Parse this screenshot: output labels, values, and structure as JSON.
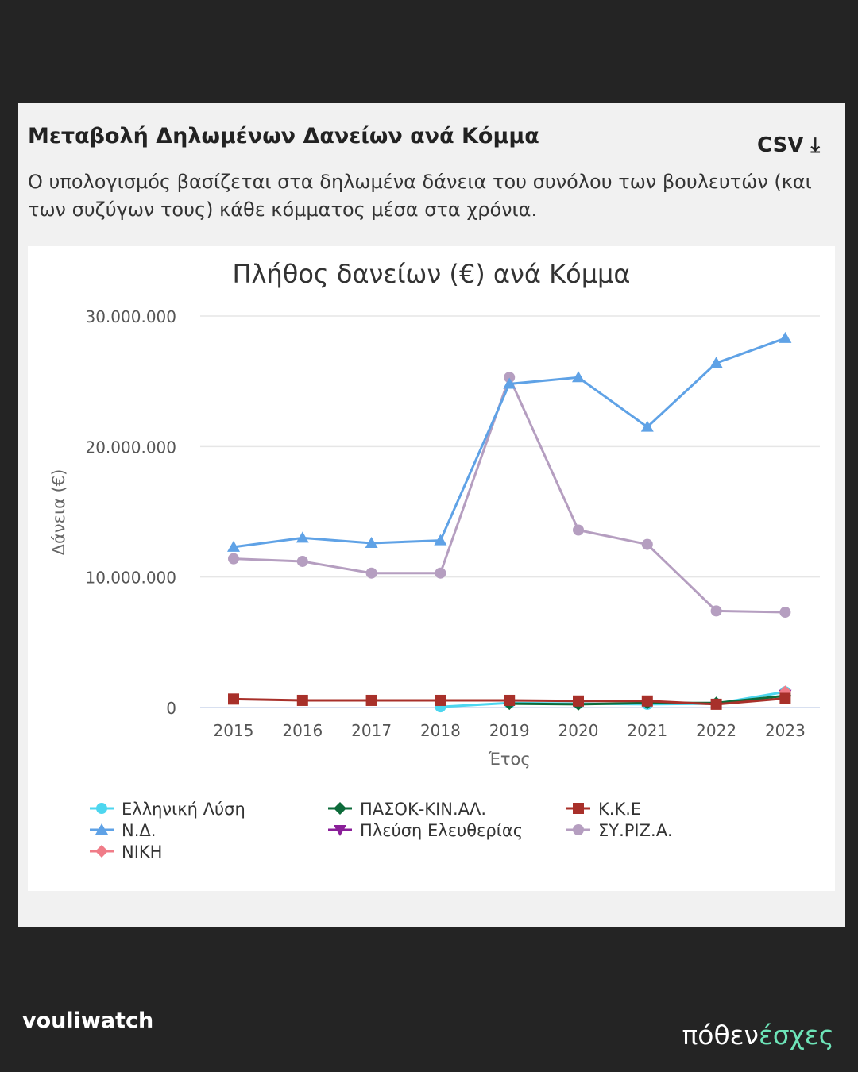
{
  "header": {
    "title": "Μεταβολή Δηλωμένων Δανείων ανά Κόμμα",
    "csv_label": "CSV ⤓",
    "description": "Ο υπολογισμός βασίζεται στα δηλωμένα δάνεια του συνόλου των βουλευτών (και των συζύγων τους) κάθε κόμματος μέσα στα χρόνια."
  },
  "logos": {
    "left": "vouliwatch",
    "right_a": "πόθεν",
    "right_b": "έσχες"
  },
  "chart_data": {
    "type": "line",
    "title": "Πλήθος δανείων (€) ανά Κόμμα",
    "xlabel": "Έτος",
    "ylabel": "Δάνεια (€)",
    "ylim": [
      0,
      30000000
    ],
    "yticks": [
      0,
      10000000,
      20000000,
      30000000
    ],
    "ytick_labels": [
      "0",
      "10.000.000",
      "20.000.000",
      "30.000.000"
    ],
    "grid": true,
    "legend": "bottom",
    "categories": [
      "2015",
      "2016",
      "2017",
      "2018",
      "2019",
      "2020",
      "2021",
      "2022",
      "2023"
    ],
    "series": [
      {
        "name": "Ελληνική Λύση",
        "color": "#4dd6ef",
        "marker": "circle",
        "values": [
          null,
          null,
          null,
          50000,
          350000,
          300000,
          250000,
          300000,
          1200000
        ]
      },
      {
        "name": "ΠΑΣΟΚ-ΚΙΝ.ΑΛ.",
        "color": "#0d6b3a",
        "marker": "diamond",
        "values": [
          null,
          null,
          null,
          null,
          300000,
          250000,
          350000,
          350000,
          900000
        ]
      },
      {
        "name": "Κ.Κ.Ε",
        "color": "#a8302a",
        "marker": "square",
        "values": [
          650000,
          550000,
          550000,
          550000,
          550000,
          500000,
          500000,
          250000,
          700000
        ]
      },
      {
        "name": "Ν.Δ.",
        "color": "#5fa2e6",
        "marker": "triangle",
        "values": [
          12300000,
          13000000,
          12600000,
          12800000,
          24800000,
          25300000,
          21500000,
          26400000,
          28300000
        ]
      },
      {
        "name": "Πλεύση Ελευθερίας",
        "color": "#8a1f99",
        "marker": "triangle-down",
        "values": [
          null,
          null,
          null,
          null,
          null,
          null,
          null,
          null,
          1000000
        ]
      },
      {
        "name": "ΣΥ.ΡΙΖ.Α.",
        "color": "#b59ec0",
        "marker": "circle",
        "values": [
          11400000,
          11200000,
          10300000,
          10300000,
          25300000,
          13600000,
          12500000,
          7400000,
          7300000
        ]
      },
      {
        "name": "ΝΙΚΗ",
        "color": "#f07c88",
        "marker": "diamond",
        "values": [
          null,
          null,
          null,
          null,
          null,
          null,
          null,
          null,
          1200000
        ]
      }
    ]
  }
}
